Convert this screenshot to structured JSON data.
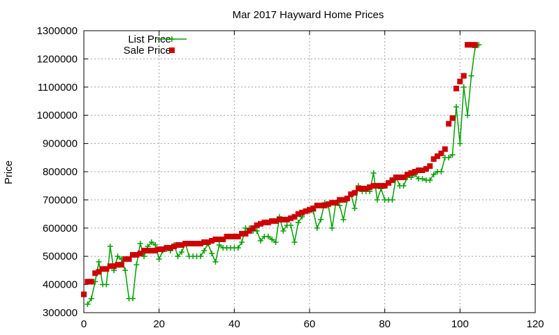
{
  "chart_data": {
    "type": "line",
    "title": "Mar 2017 Hayward Home Prices",
    "xlabel": "",
    "ylabel": "Price",
    "xlim": [
      0,
      120
    ],
    "ylim": [
      300000,
      1300000
    ],
    "xticks": [
      0,
      20,
      40,
      60,
      80,
      100,
      120
    ],
    "yticks": [
      300000,
      400000,
      500000,
      600000,
      700000,
      800000,
      900000,
      1000000,
      1100000,
      1200000,
      1300000
    ],
    "grid": true,
    "legend_position": "top-left",
    "series": [
      {
        "name": "List Price",
        "style": "line-with-plus-markers",
        "color": "#00a000",
        "x": [
          1,
          2,
          3,
          4,
          5,
          6,
          7,
          8,
          9,
          10,
          11,
          12,
          13,
          14,
          15,
          16,
          17,
          18,
          19,
          20,
          21,
          22,
          23,
          24,
          25,
          26,
          27,
          28,
          29,
          30,
          31,
          32,
          33,
          34,
          35,
          36,
          37,
          38,
          39,
          40,
          41,
          42,
          43,
          44,
          45,
          46,
          47,
          48,
          49,
          50,
          51,
          52,
          53,
          54,
          55,
          56,
          57,
          58,
          59,
          60,
          61,
          62,
          63,
          64,
          65,
          66,
          67,
          68,
          69,
          70,
          71,
          72,
          73,
          74,
          75,
          76,
          77,
          78,
          79,
          80,
          81,
          82,
          83,
          84,
          85,
          86,
          87,
          88,
          89,
          90,
          91,
          92,
          93,
          94,
          95,
          96,
          97,
          98,
          99,
          100,
          101,
          102,
          103,
          104,
          105
        ],
        "values": [
          330000,
          350000,
          410000,
          480000,
          400000,
          400000,
          535000,
          450000,
          500000,
          490000,
          450000,
          350000,
          350000,
          470000,
          545000,
          500000,
          535000,
          550000,
          540000,
          490000,
          520000,
          525000,
          520000,
          540000,
          500000,
          515000,
          545000,
          500000,
          500000,
          500000,
          500000,
          520000,
          545000,
          510000,
          480000,
          540000,
          530000,
          530000,
          530000,
          530000,
          530000,
          550000,
          600000,
          600000,
          590000,
          590000,
          555000,
          570000,
          570000,
          560000,
          550000,
          640000,
          590000,
          610000,
          610000,
          550000,
          620000,
          640000,
          660000,
          660000,
          660000,
          600000,
          630000,
          690000,
          680000,
          600000,
          690000,
          680000,
          630000,
          700000,
          720000,
          670000,
          750000,
          730000,
          730000,
          730000,
          795000,
          700000,
          740000,
          700000,
          700000,
          700000,
          780000,
          750000,
          750000,
          780000,
          780000,
          790000,
          775000,
          775000,
          770000,
          770000,
          790000,
          800000,
          800000,
          850000,
          850000,
          860000,
          1030000,
          900000,
          1100000,
          1000000,
          1140000,
          1240000,
          1250000
        ],
        "values_note_unused": null
      },
      {
        "name": "Sale Price",
        "style": "square-markers",
        "color": "#cc0000",
        "x": [
          0,
          1,
          2,
          3,
          4,
          5,
          6,
          7,
          8,
          9,
          10,
          11,
          12,
          13,
          14,
          15,
          16,
          17,
          18,
          19,
          20,
          21,
          22,
          23,
          24,
          25,
          26,
          27,
          28,
          29,
          30,
          31,
          32,
          33,
          34,
          35,
          36,
          37,
          38,
          39,
          40,
          41,
          42,
          43,
          44,
          45,
          46,
          47,
          48,
          49,
          50,
          51,
          52,
          53,
          54,
          55,
          56,
          57,
          58,
          59,
          60,
          61,
          62,
          63,
          64,
          65,
          66,
          67,
          68,
          69,
          70,
          71,
          72,
          73,
          74,
          75,
          76,
          77,
          78,
          79,
          80,
          81,
          82,
          83,
          84,
          85,
          86,
          87,
          88,
          89,
          90,
          91,
          92,
          93,
          94,
          95,
          96,
          97,
          98,
          99,
          100,
          101,
          102,
          103,
          104
        ],
        "values": [
          365000,
          410000,
          410000,
          440000,
          445000,
          455000,
          455000,
          465000,
          465000,
          470000,
          470000,
          490000,
          490000,
          505000,
          505000,
          510000,
          520000,
          520000,
          520000,
          520000,
          525000,
          525000,
          530000,
          530000,
          535000,
          540000,
          540000,
          545000,
          545000,
          545000,
          545000,
          545000,
          550000,
          550000,
          555000,
          560000,
          560000,
          560000,
          570000,
          570000,
          570000,
          570000,
          580000,
          580000,
          590000,
          600000,
          610000,
          615000,
          620000,
          620000,
          625000,
          625000,
          630000,
          630000,
          630000,
          635000,
          640000,
          650000,
          655000,
          660000,
          665000,
          670000,
          680000,
          680000,
          680000,
          685000,
          690000,
          690000,
          700000,
          700000,
          705000,
          720000,
          725000,
          740000,
          740000,
          740000,
          745000,
          750000,
          750000,
          750000,
          750000,
          760000,
          770000,
          780000,
          780000,
          780000,
          790000,
          795000,
          800000,
          805000,
          805000,
          810000,
          820000,
          845000,
          855000,
          865000,
          880000,
          970000,
          990000,
          1095000,
          1120000,
          1140000,
          1250000,
          1250000,
          1250000
        ]
      }
    ]
  }
}
